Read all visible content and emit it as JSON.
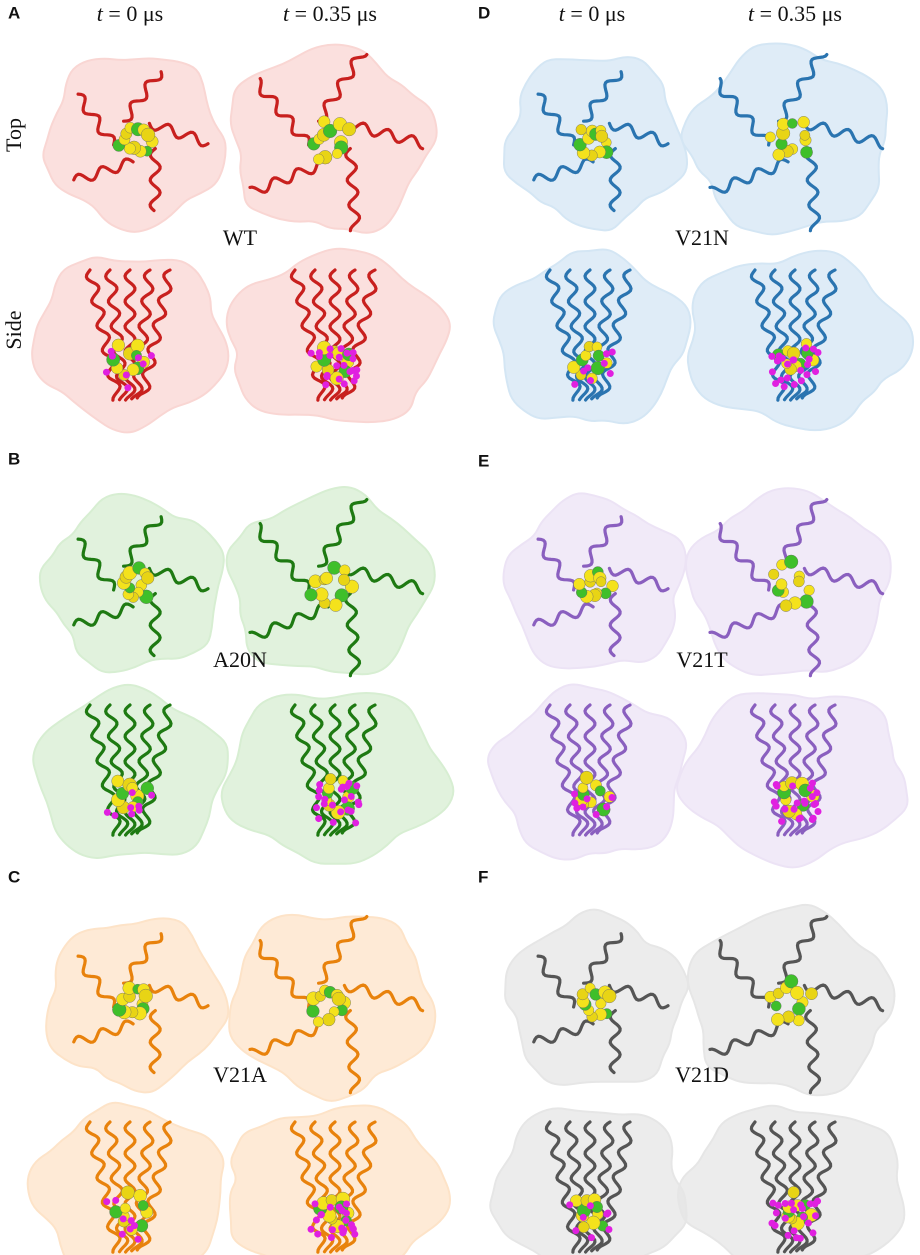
{
  "header": {
    "variable": "t",
    "columns": [
      "= 0 μs",
      "= 0.35 μs"
    ]
  },
  "rows": [
    "Top",
    "Side"
  ],
  "panels": [
    {
      "letter": "A",
      "label": "WT"
    },
    {
      "letter": "B",
      "label": "A20N"
    },
    {
      "letter": "C",
      "label": "V21A"
    },
    {
      "letter": "D",
      "label": "V21N"
    },
    {
      "letter": "E",
      "label": "V21T"
    },
    {
      "letter": "F",
      "label": "V21D"
    }
  ]
}
